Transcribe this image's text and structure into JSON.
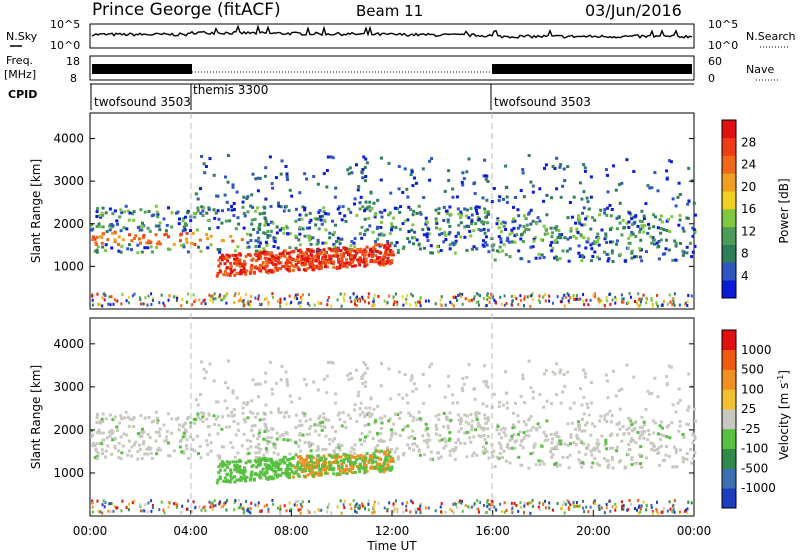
{
  "header": {
    "station": "Prince George (fitACF)",
    "beam": "Beam 11",
    "date": "03/Jun/2016"
  },
  "chart_data": [
    {
      "type": "line",
      "panel": "noise",
      "left_label": "N.Sky",
      "right_label": "N.Search",
      "left_ticks": [
        "10^5",
        "10^0"
      ],
      "right_ticks": [
        "10^5",
        "10^0"
      ],
      "scale": "log"
    },
    {
      "type": "line",
      "panel": "frequency",
      "left_label_lines": [
        "Freq.",
        "[MHz]"
      ],
      "right_label": "Nave",
      "left_ticks": [
        18,
        8
      ],
      "right_ticks": [
        60,
        0
      ],
      "series": [
        {
          "name": "Freq.",
          "hours": [
            0,
            4,
            16,
            24
          ],
          "level": [
            "high",
            "low",
            "high",
            "high"
          ]
        }
      ]
    },
    {
      "type": "table",
      "panel": "cpid",
      "label": "CPID",
      "segments": [
        {
          "name": "twofsound 3503",
          "start": 0,
          "end": 4
        },
        {
          "name": "themis 3300",
          "start": 4,
          "end": 16
        },
        {
          "name": "twofsound 3503",
          "start": 16,
          "end": 24
        }
      ]
    },
    {
      "type": "heatmap",
      "panel": "power",
      "ylabel": "Slant Range [km]",
      "ylim": [
        0,
        4600
      ],
      "yticks": [
        1000,
        2000,
        3000,
        4000
      ],
      "xlim": [
        0,
        24
      ],
      "colorbar": {
        "title": "Power [dB]",
        "ticks": [
          4,
          8,
          12,
          16,
          20,
          24,
          28
        ],
        "colors": [
          "#0a1bd8",
          "#2f55c0",
          "#2e7d5a",
          "#4e9c5a",
          "#80c840",
          "#f0d020",
          "#f0a020",
          "#f06818",
          "#f03c14",
          "#e01010"
        ]
      }
    },
    {
      "type": "heatmap",
      "panel": "velocity",
      "ylabel": "Slant Range [km]",
      "ylim": [
        0,
        4600
      ],
      "yticks": [
        1000,
        2000,
        3000,
        4000
      ],
      "xlim": [
        0,
        24
      ],
      "xticks": [
        "00:00",
        "04:00",
        "08:00",
        "12:00",
        "16:00",
        "20:00",
        "00:00"
      ],
      "xlabel": "Time UT",
      "colorbar": {
        "title": "Velocity [m s^-1]",
        "ticks": [
          1000,
          500,
          100,
          25,
          -25,
          -100,
          -500,
          -1000
        ],
        "colors": [
          "#1d3dc0",
          "#3a70b0",
          "#2f8a4a",
          "#58c040",
          "#c8c8c0",
          "#f0c030",
          "#f09020",
          "#f05a10",
          "#e01010"
        ]
      }
    }
  ]
}
